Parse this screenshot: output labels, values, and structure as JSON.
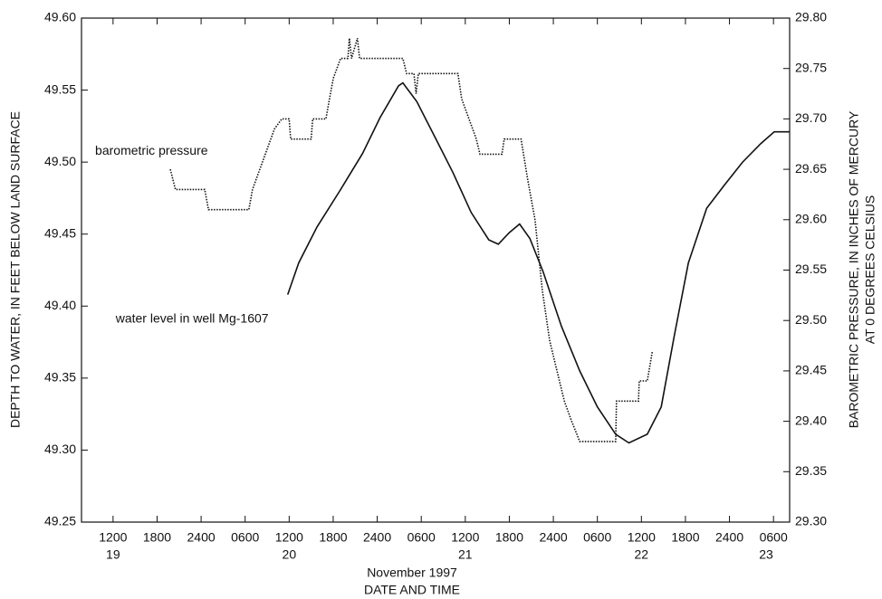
{
  "chart_data": {
    "type": "line",
    "x_label": "DATE AND TIME",
    "x_sublabel": "November 1997",
    "y_label": "DEPTH TO WATER, IN FEET BELOW LAND SURFACE",
    "y2_label": [
      "BAROMETRIC PRESSURE, IN INCHES OF MERCURY",
      "AT 0 DEGREES CELSIUS"
    ],
    "xlim": [
      7.7,
      104.2
    ],
    "xticks": [
      {
        "value": 12,
        "label": "1200"
      },
      {
        "value": 18,
        "label": "1800"
      },
      {
        "value": 24,
        "label": "2400"
      },
      {
        "value": 30,
        "label": "0600"
      },
      {
        "value": 36,
        "label": "1200"
      },
      {
        "value": 42,
        "label": "1800"
      },
      {
        "value": 48,
        "label": "2400"
      },
      {
        "value": 54,
        "label": "0600"
      },
      {
        "value": 60,
        "label": "1200"
      },
      {
        "value": 66,
        "label": "1800"
      },
      {
        "value": 72,
        "label": "2400"
      },
      {
        "value": 78,
        "label": "0600"
      },
      {
        "value": 84,
        "label": "1200"
      },
      {
        "value": 90,
        "label": "1800"
      },
      {
        "value": 96,
        "label": "2400"
      },
      {
        "value": 102,
        "label": "0600"
      }
    ],
    "x_day_labels": [
      {
        "value": 12,
        "label": "19"
      },
      {
        "value": 36,
        "label": "20"
      },
      {
        "value": 60,
        "label": "21"
      },
      {
        "value": 84,
        "label": "22"
      },
      {
        "value": 101,
        "label": "23"
      }
    ],
    "ylim": [
      49.25,
      49.6
    ],
    "yticks": [
      {
        "value": 49.25,
        "label": "49.25"
      },
      {
        "value": 49.3,
        "label": "49.30"
      },
      {
        "value": 49.35,
        "label": "49.35"
      },
      {
        "value": 49.4,
        "label": "49.40"
      },
      {
        "value": 49.45,
        "label": "49.45"
      },
      {
        "value": 49.5,
        "label": "49.50"
      },
      {
        "value": 49.55,
        "label": "49.55"
      },
      {
        "value": 49.6,
        "label": "49.60"
      }
    ],
    "y2lim": [
      29.3,
      29.8
    ],
    "y2ticks": [
      {
        "value": 29.3,
        "label": "29.30"
      },
      {
        "value": 29.35,
        "label": "29.35"
      },
      {
        "value": 29.4,
        "label": "29.40"
      },
      {
        "value": 29.45,
        "label": "29.45"
      },
      {
        "value": 29.5,
        "label": "29.50"
      },
      {
        "value": 29.55,
        "label": "29.55"
      },
      {
        "value": 29.6,
        "label": "29.60"
      },
      {
        "value": 29.65,
        "label": "29.65"
      },
      {
        "value": 29.7,
        "label": "29.70"
      },
      {
        "value": 29.75,
        "label": "29.75"
      },
      {
        "value": 29.8,
        "label": "29.80"
      }
    ],
    "series": [
      {
        "name": "water level in well Mg-1607",
        "color": "#111111",
        "style": "solid",
        "x": [
          35.8,
          37.3,
          39.8,
          42.9,
          46,
          48.4,
          50.9,
          51.5,
          53.4,
          55.8,
          58.3,
          60.8,
          63.2,
          64.5,
          66,
          67.4,
          68.8,
          70.6,
          73.1,
          75.6,
          78,
          80.5,
          82.3,
          84.8,
          86.7,
          88.5,
          90.4,
          92.9,
          95.3,
          97.8,
          100.3,
          102.1,
          104.2
        ],
        "values": [
          49.408,
          49.43,
          49.455,
          49.48,
          49.506,
          49.531,
          49.553,
          49.555,
          49.542,
          49.518,
          49.493,
          49.465,
          49.446,
          49.443,
          49.451,
          49.457,
          49.447,
          49.424,
          49.386,
          49.355,
          49.33,
          49.311,
          49.305,
          49.311,
          49.33,
          49.38,
          49.43,
          49.468,
          49.484,
          49.5,
          49.513,
          49.521,
          49.521
        ]
      },
      {
        "name": "barometric pressure",
        "color": "#111111",
        "style": "dotted",
        "axis": "y2",
        "x": [
          19.8,
          20.5,
          24.5,
          25,
          30.5,
          31,
          32,
          33,
          34,
          35,
          36,
          36.2,
          39,
          39.2,
          41,
          41.5,
          42,
          43,
          44,
          44.2,
          44.5,
          45.3,
          45.6,
          51.5,
          52,
          53,
          53.3,
          53.6,
          59,
          59.5,
          60.5,
          61.5,
          62,
          65,
          65.3,
          67.6,
          68.5,
          69.5,
          70.5,
          71.5,
          72.5,
          73.5,
          74.5,
          75.6,
          80.5,
          80.6,
          83.6,
          83.7,
          84.8,
          85.5
        ],
        "values": [
          29.65,
          29.63,
          29.63,
          29.61,
          29.61,
          29.63,
          29.65,
          29.67,
          29.69,
          29.7,
          29.7,
          29.68,
          29.68,
          29.7,
          29.7,
          29.72,
          29.74,
          29.76,
          29.76,
          29.78,
          29.76,
          29.78,
          29.76,
          29.76,
          29.745,
          29.745,
          29.725,
          29.745,
          29.745,
          29.72,
          29.7,
          29.68,
          29.665,
          29.665,
          29.68,
          29.68,
          29.64,
          29.6,
          29.53,
          29.48,
          29.45,
          29.42,
          29.4,
          29.38,
          29.38,
          29.42,
          29.42,
          29.44,
          29.44,
          29.47
        ]
      }
    ]
  }
}
